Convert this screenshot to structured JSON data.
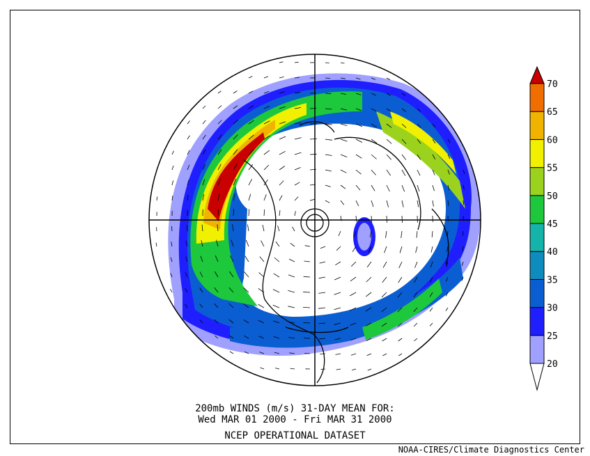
{
  "caption": {
    "line1": "200mb WINDS (m/s)   31-DAY MEAN FOR:",
    "line2": "Wed MAR 01 2000 - Fri MAR 31 2000",
    "line3": "NCEP OPERATIONAL DATASET"
  },
  "credit": "NOAA-CIRES/Climate Diagnostics Center",
  "colorbar": {
    "levels": [
      "20",
      "25",
      "30",
      "35",
      "40",
      "45",
      "50",
      "55",
      "60",
      "65",
      "70"
    ],
    "colors": [
      "#a0a0ff",
      "#1e1eff",
      "#0a5ed2",
      "#0f8cbe",
      "#14b4aa",
      "#1ec83c",
      "#9ad21e",
      "#f0f000",
      "#f0b400",
      "#f06e00",
      "#c80000"
    ]
  },
  "map": {
    "projection": "north-polar-stereographic",
    "field": "wind-speed-shaded-with-vectors"
  }
}
